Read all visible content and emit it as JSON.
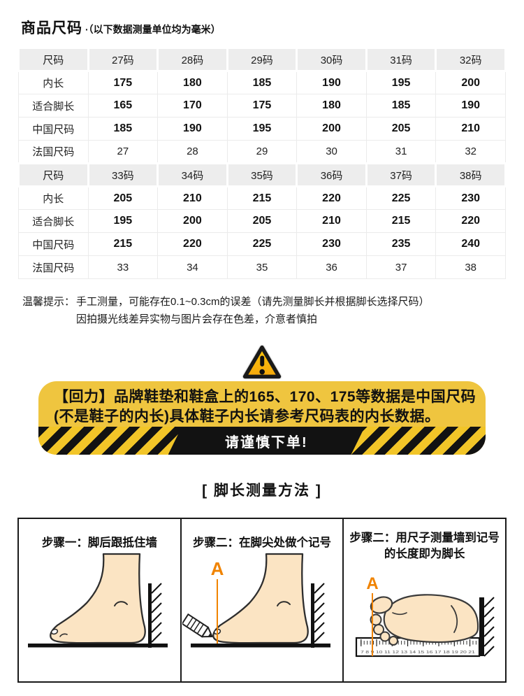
{
  "header": {
    "title": "商品尺码",
    "subtitle": "·（以下数据测量单位均为毫米）"
  },
  "size_table": {
    "sections": [
      {
        "header": [
          "尺码",
          "27码",
          "28码",
          "29码",
          "30码",
          "31码",
          "32码"
        ],
        "rows": [
          {
            "label": "内长",
            "values": [
              "175",
              "180",
              "185",
              "190",
              "195",
              "200"
            ],
            "bold": true
          },
          {
            "label": "适合脚长",
            "values": [
              "165",
              "170",
              "175",
              "180",
              "185",
              "190"
            ],
            "bold": true
          },
          {
            "label": "中国尺码",
            "values": [
              "185",
              "190",
              "195",
              "200",
              "205",
              "210"
            ],
            "bold": true
          },
          {
            "label": "法国尺码",
            "values": [
              "27",
              "28",
              "29",
              "30",
              "31",
              "32"
            ],
            "bold": false
          }
        ]
      },
      {
        "header": [
          "尺码",
          "33码",
          "34码",
          "35码",
          "36码",
          "37码",
          "38码"
        ],
        "rows": [
          {
            "label": "内长",
            "values": [
              "205",
              "210",
              "215",
              "220",
              "225",
              "230"
            ],
            "bold": true
          },
          {
            "label": "适合脚长",
            "values": [
              "195",
              "200",
              "205",
              "210",
              "215",
              "220"
            ],
            "bold": true
          },
          {
            "label": "中国尺码",
            "values": [
              "215",
              "220",
              "225",
              "230",
              "235",
              "240"
            ],
            "bold": true
          },
          {
            "label": "法国尺码",
            "values": [
              "33",
              "34",
              "35",
              "36",
              "37",
              "38"
            ],
            "bold": false
          }
        ]
      }
    ]
  },
  "reminder": {
    "label": "温馨提示：",
    "line1": "手工测量，可能存在0.1~0.3cm的误差（请先测量脚长并根据脚长选择尺码）",
    "line2": "因拍摄光线差异实物与图片会存在色差，介意者慎拍"
  },
  "warning": {
    "line1": "【回力】品牌鞋垫和鞋盒上的165、170、175等数据是中国尺码",
    "line2": "(不是鞋子的内长)具体鞋子内长请参考尺码表的内长数据。",
    "strip_text": "请谨慎下单!"
  },
  "measure": {
    "title": "[ 脚长测量方法 ]",
    "steps": [
      {
        "title": "步骤一：脚后跟抵住墙"
      },
      {
        "title": "步骤二：在脚尖处做个记号"
      },
      {
        "title_line1": "步骤二：用尺子测量墙到记号",
        "title_line2": "的长度即为脚长"
      }
    ],
    "marker_label": "A",
    "ruler_numbers": "7 8 9 10 11 12 13 14 15 16 17 18 19 20 21"
  },
  "colors": {
    "banner_yellow": "#EFC53F",
    "stripe_yellow": "#F2C528",
    "hazard_black": "#121212",
    "marker_orange": "#F08300",
    "skin_tone": "#FBE4C3",
    "table_header_bg": "#EDEDED",
    "table_border": "#EBEBEB"
  }
}
